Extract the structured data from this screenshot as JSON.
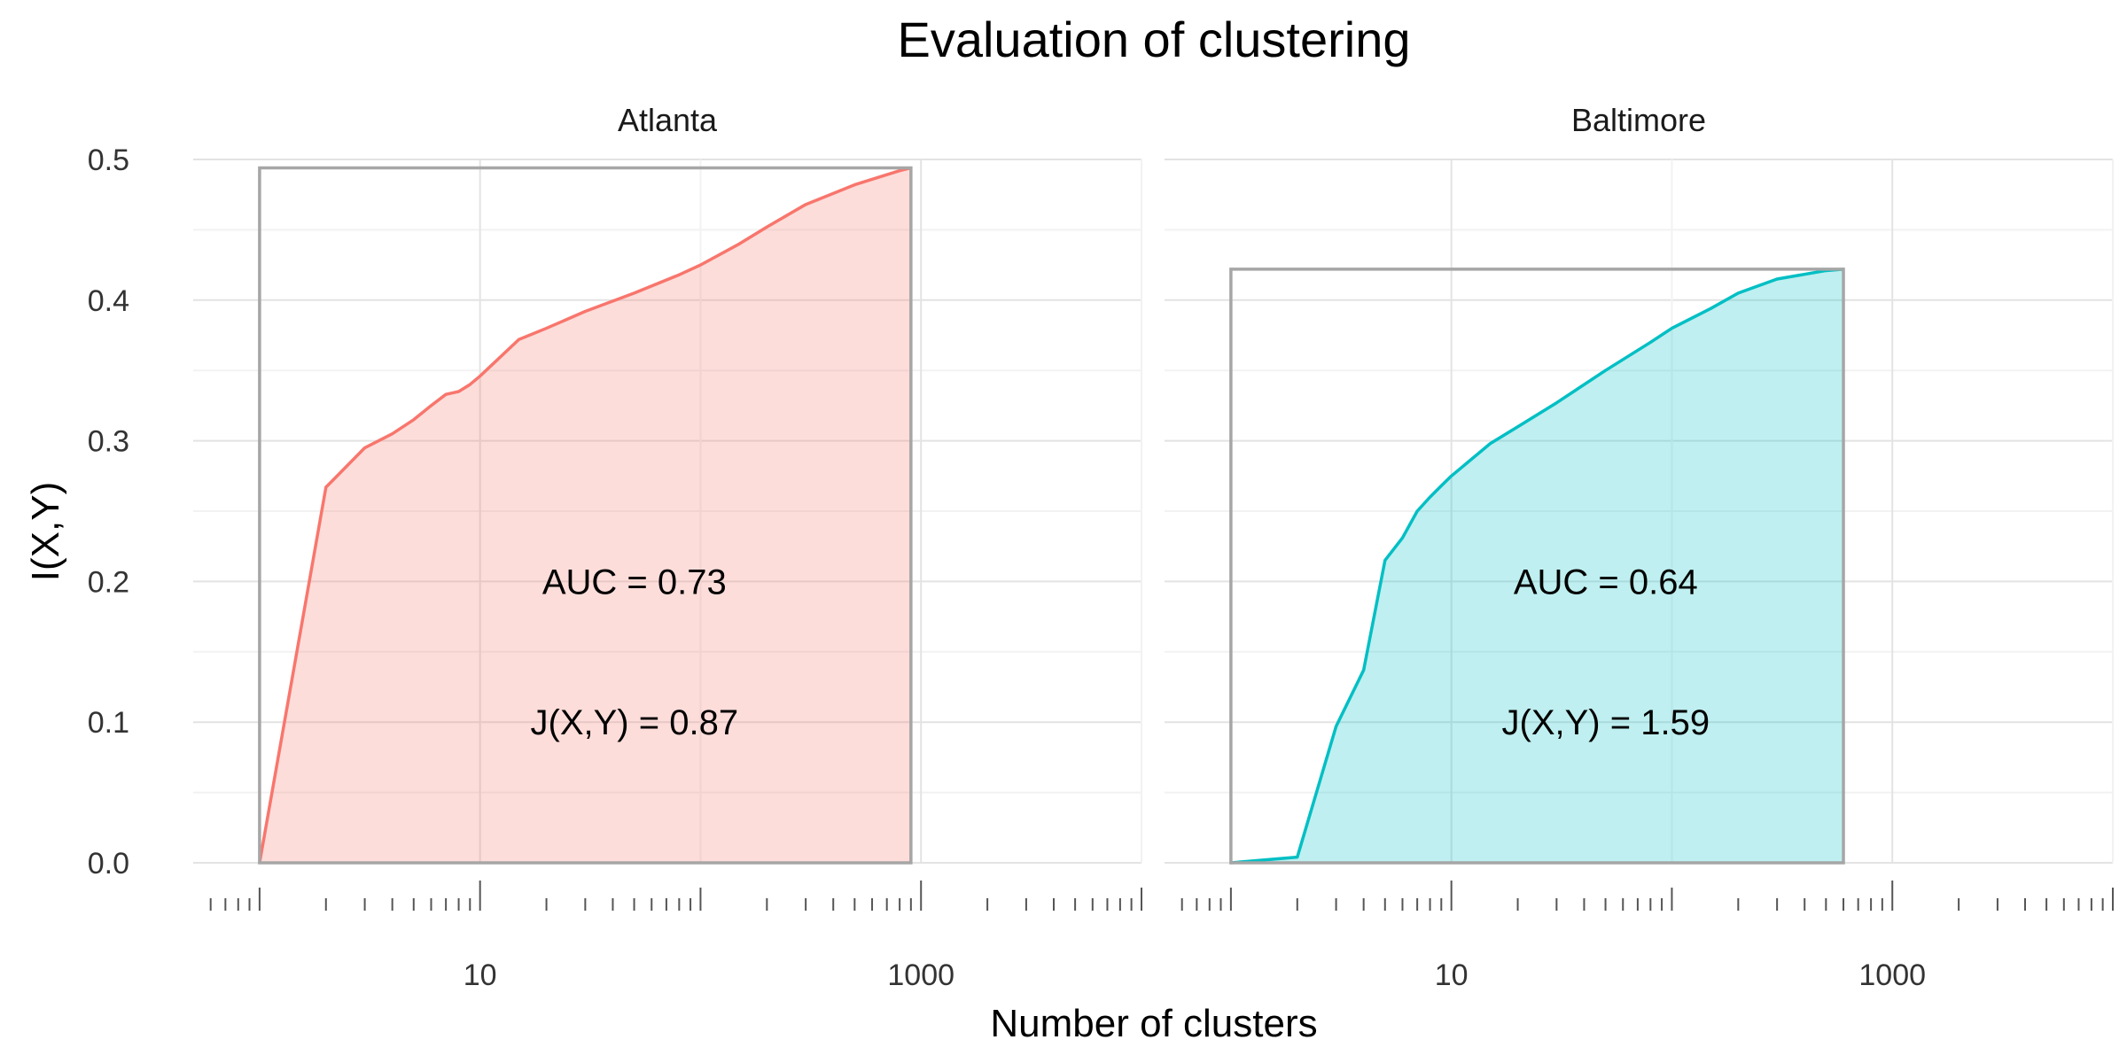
{
  "chart_data": {
    "type": "area",
    "title": "Evaluation of clustering",
    "xlabel": "Number of clusters",
    "ylabel": "I(X,Y)",
    "x_scale": "log10",
    "xlim": [
      0.5,
      10000
    ],
    "ylim": [
      0,
      0.5
    ],
    "x_ticks": [
      10,
      1000
    ],
    "x_tick_labels": [
      "10",
      "1000"
    ],
    "y_ticks": [
      0,
      0.1,
      0.2,
      0.3,
      0.4,
      0.5
    ],
    "y_tick_labels": [
      "0.0",
      "0.1",
      "0.2",
      "0.3",
      "0.4",
      "0.5"
    ],
    "grid": true,
    "colors": {
      "Atlanta": "#F8766D",
      "Baltimore": "#00BFC4",
      "box": "#a6a6a6"
    },
    "panels": [
      {
        "name": "Atlanta",
        "x": [
          1,
          2,
          3,
          4,
          5,
          6,
          7,
          8,
          9,
          10,
          15,
          20,
          30,
          50,
          80,
          100,
          150,
          200,
          300,
          500,
          800,
          900
        ],
        "y": [
          0.0,
          0.267,
          0.295,
          0.305,
          0.315,
          0.325,
          0.333,
          0.335,
          0.34,
          0.346,
          0.372,
          0.38,
          0.392,
          0.405,
          0.418,
          0.425,
          0.44,
          0.452,
          0.468,
          0.482,
          0.492,
          0.494
        ],
        "box": {
          "xmin": 1,
          "xmax": 900,
          "ymax": 0.494
        },
        "auc_label": "AUC =  0.73",
        "j_label": "J(X,Y) =  0.87"
      },
      {
        "name": "Baltimore",
        "x": [
          1,
          2,
          3,
          4,
          5,
          6,
          7,
          8,
          9,
          10,
          15,
          20,
          30,
          50,
          80,
          100,
          150,
          200,
          300,
          500,
          600
        ],
        "y": [
          0.0,
          0.004,
          0.097,
          0.137,
          0.215,
          0.231,
          0.25,
          0.26,
          0.268,
          0.275,
          0.298,
          0.31,
          0.327,
          0.35,
          0.37,
          0.38,
          0.394,
          0.405,
          0.415,
          0.421,
          0.422
        ],
        "box": {
          "xmin": 1,
          "xmax": 600,
          "ymax": 0.422
        },
        "auc_label": "AUC =  0.64",
        "j_label": "J(X,Y) =  1.59"
      }
    ]
  }
}
